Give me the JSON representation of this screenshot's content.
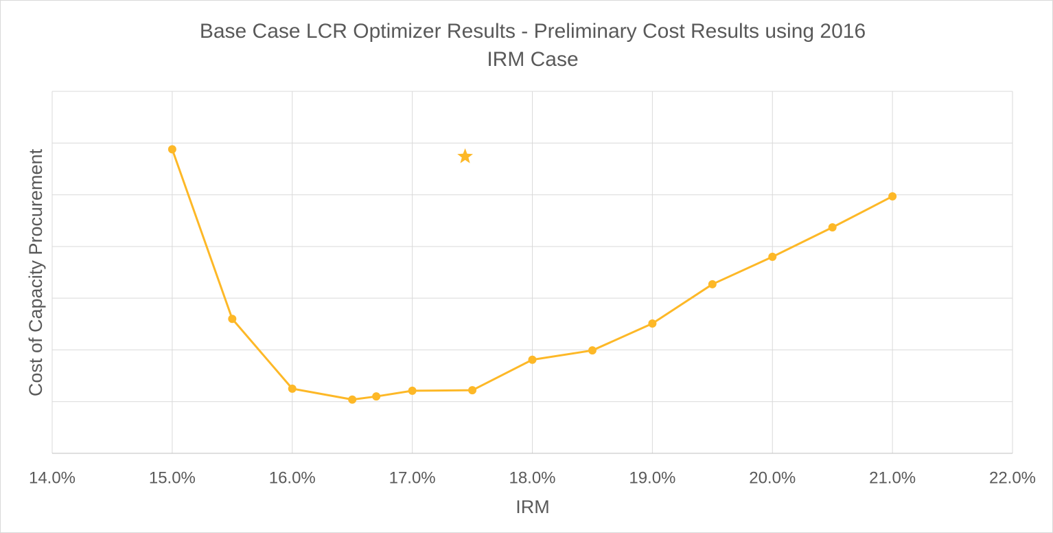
{
  "chart_data": {
    "type": "line",
    "title": [
      "Base Case LCR Optimizer Results - Preliminary Cost Results using 2016",
      "IRM Case"
    ],
    "x_label": "IRM",
    "y_label": "Cost of Capacity Procurement",
    "x": [
      15.0,
      15.5,
      16.0,
      16.5,
      16.7,
      17.0,
      17.5,
      18.0,
      18.5,
      19.0,
      19.5,
      20.0,
      20.5,
      21.0
    ],
    "series": [
      {
        "color": "#fdb827",
        "marker": "circle",
        "values": [
          5.88,
          2.6,
          1.25,
          1.04,
          1.1,
          1.21,
          1.22,
          1.81,
          1.99,
          2.51,
          3.27,
          3.8,
          4.37,
          4.97
        ]
      },
      {
        "color": "#fdb827",
        "marker": "star",
        "x": [
          17.44
        ],
        "values": [
          5.74
        ]
      }
    ],
    "xlim": [
      14.0,
      22.0
    ],
    "xticks": [
      {
        "value": 14.0,
        "label": "14.0%"
      },
      {
        "value": 15.0,
        "label": "15.0%"
      },
      {
        "value": 16.0,
        "label": "16.0%"
      },
      {
        "value": 17.0,
        "label": "17.0%"
      },
      {
        "value": 18.0,
        "label": "18.0%"
      },
      {
        "value": 19.0,
        "label": "19.0%"
      },
      {
        "value": 20.0,
        "label": "20.0%"
      },
      {
        "value": 21.0,
        "label": "21.0%"
      },
      {
        "value": 22.0,
        "label": "22.0%"
      }
    ],
    "ylim": [
      0,
      7
    ],
    "yticks": [
      0,
      1,
      2,
      3,
      4,
      5,
      6,
      7
    ],
    "ytick_labels": false,
    "grid": true
  }
}
